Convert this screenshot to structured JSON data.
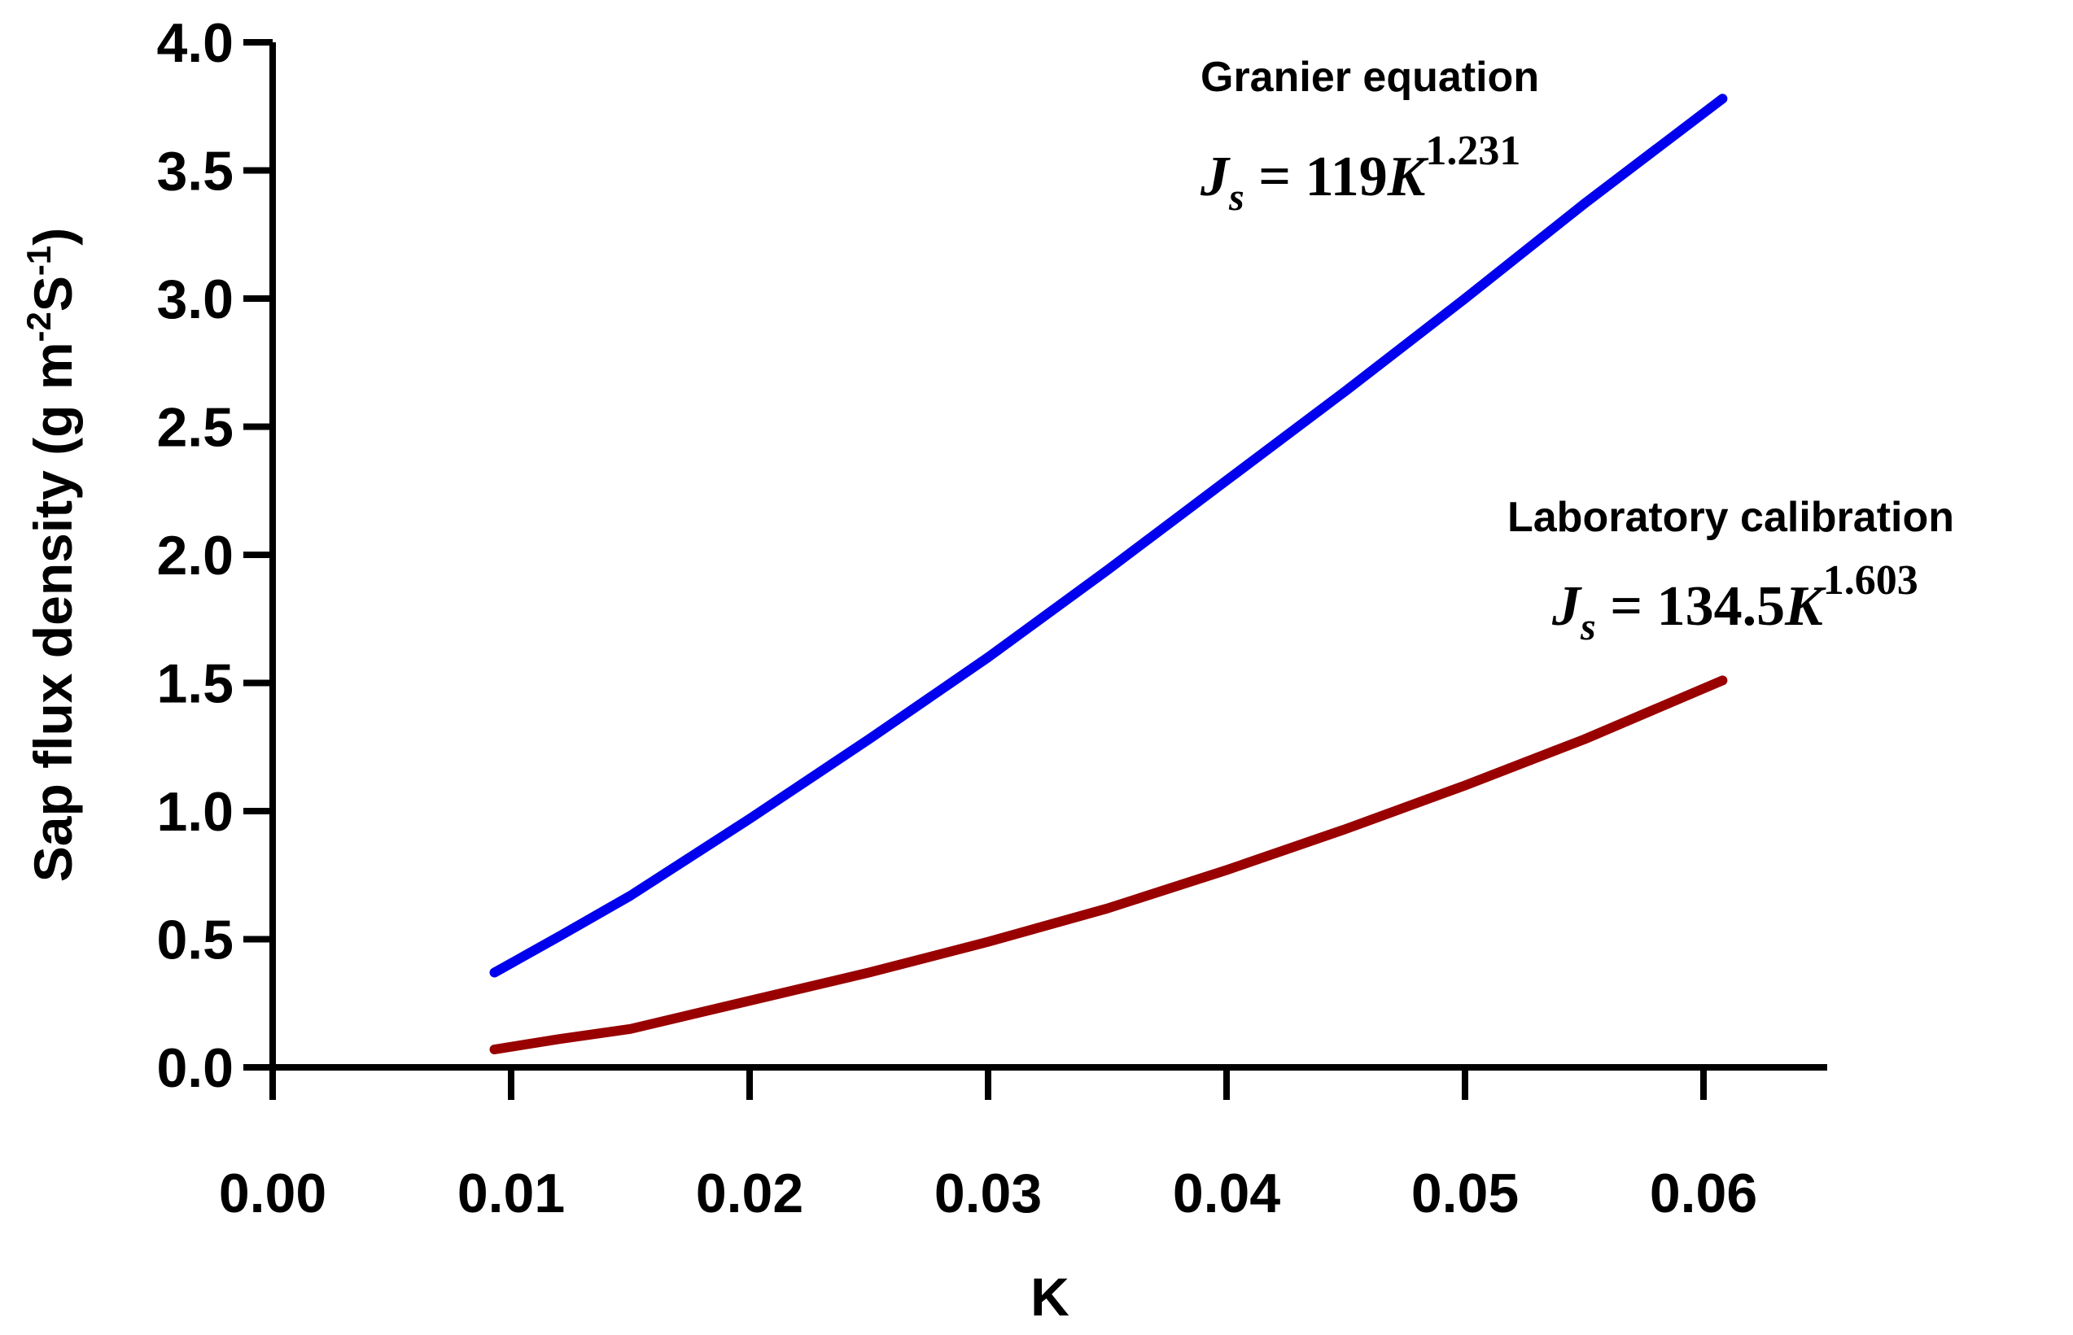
{
  "chart_data": {
    "type": "line",
    "title": "",
    "xlabel": "K",
    "ylabel": {
      "main": "Sap flux density (g m",
      "sup1": "-2",
      "mid": "S",
      "sup2": "-1",
      "end": ")"
    },
    "xlim": [
      0.0,
      0.065
    ],
    "ylim": [
      0.0,
      4.0
    ],
    "xticks": [
      "0.00",
      "0.01",
      "0.02",
      "0.03",
      "0.04",
      "0.05",
      "0.06"
    ],
    "xtick_values": [
      0.0,
      0.01,
      0.02,
      0.03,
      0.04,
      0.05,
      0.06
    ],
    "yticks": [
      "0.0",
      "0.5",
      "1.0",
      "1.5",
      "2.0",
      "2.5",
      "3.0",
      "3.5",
      "4.0"
    ],
    "ytick_values": [
      0.0,
      0.5,
      1.0,
      1.5,
      2.0,
      2.5,
      3.0,
      3.5,
      4.0
    ],
    "grid": false,
    "series": [
      {
        "color": "#0000ee",
        "x": [
          0.0093,
          0.012,
          0.015,
          0.02,
          0.025,
          0.03,
          0.035,
          0.04,
          0.045,
          0.05,
          0.055,
          0.0608
        ],
        "y": [
          0.37,
          0.51,
          0.67,
          0.97,
          1.28,
          1.6,
          1.94,
          2.29,
          2.64,
          3.0,
          3.37,
          3.78
        ]
      },
      {
        "color": "#990000",
        "x": [
          0.0093,
          0.012,
          0.015,
          0.02,
          0.025,
          0.03,
          0.035,
          0.04,
          0.045,
          0.05,
          0.055,
          0.0608
        ],
        "y": [
          0.07,
          0.11,
          0.15,
          0.26,
          0.37,
          0.49,
          0.62,
          0.77,
          0.93,
          1.1,
          1.28,
          1.51
        ]
      }
    ],
    "annotations": [
      {
        "title": "Granier equation",
        "eq_lhs": "J",
        "eq_sub": "s",
        "eq_mid": " = 119",
        "eq_var": "K",
        "eq_exp": "1.231"
      },
      {
        "title": "Laboratory calibration",
        "eq_lhs": "J",
        "eq_sub": "s",
        "eq_mid": " = 134.5",
        "eq_var": "K",
        "eq_exp": "1.603"
      }
    ]
  }
}
